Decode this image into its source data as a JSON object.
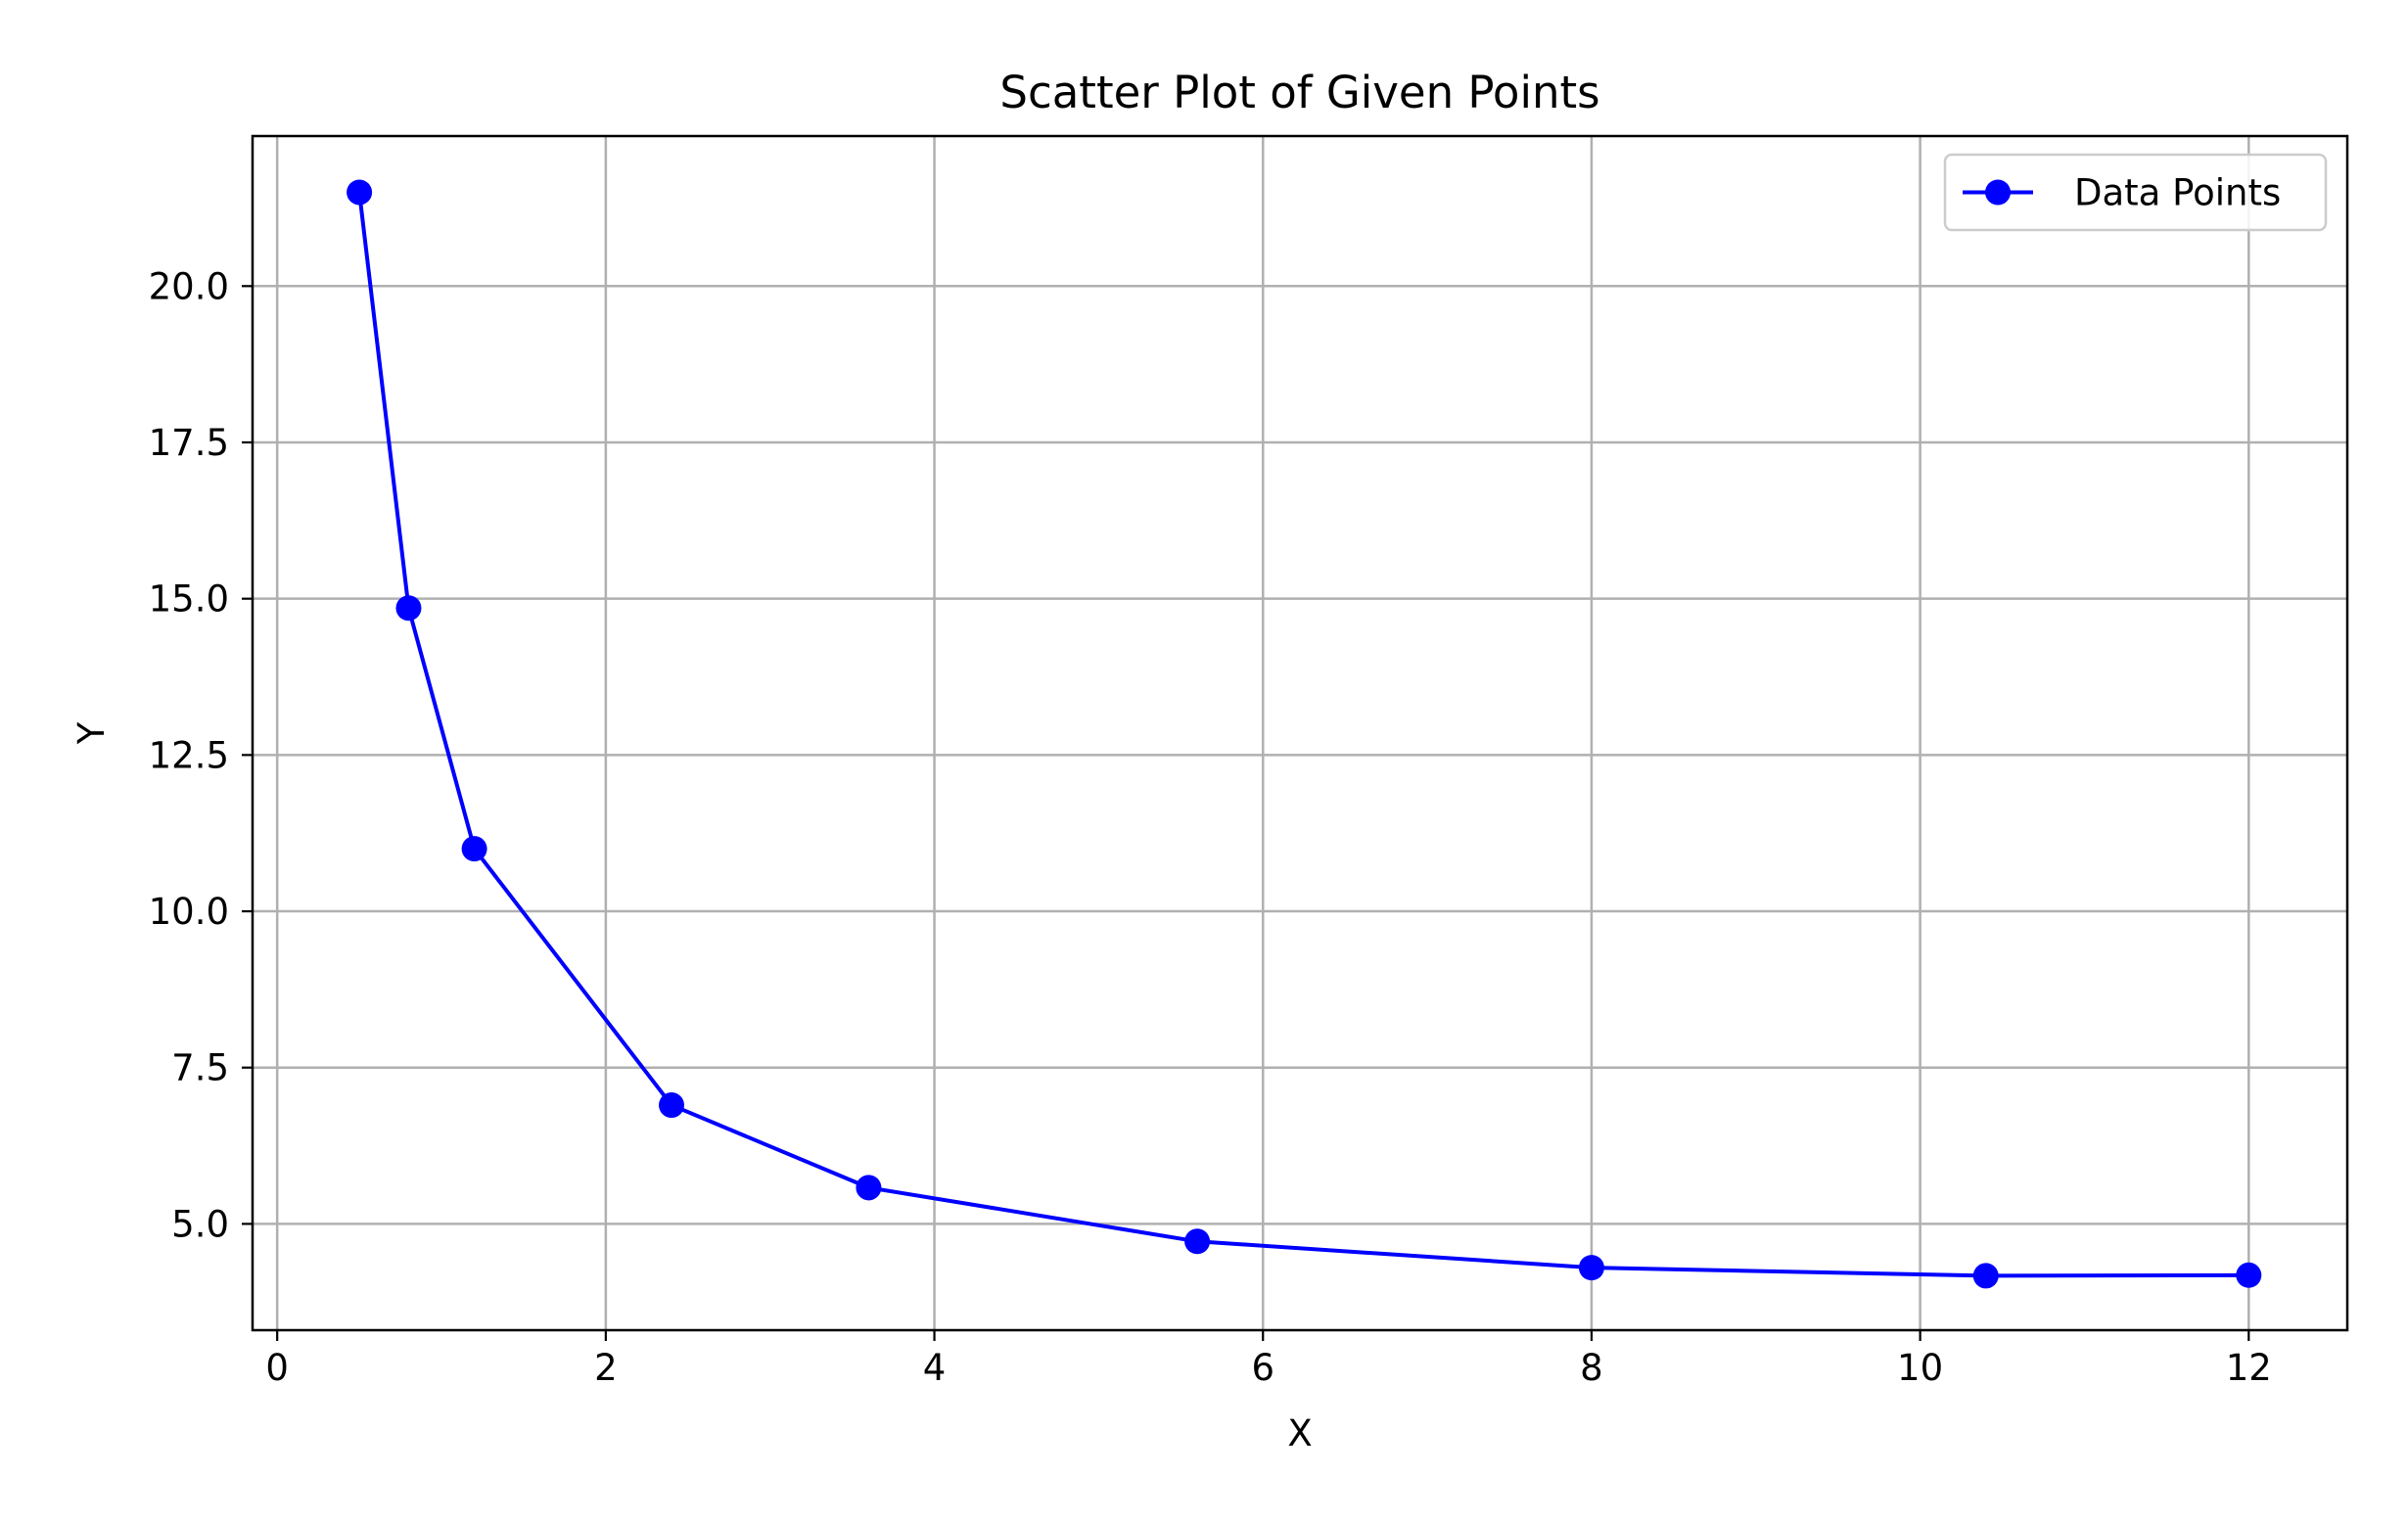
{
  "chart_data": {
    "type": "line",
    "title": "Scatter Plot of Given Points",
    "xlabel": "X",
    "ylabel": "Y",
    "xlim": [
      -0.15,
      12.6
    ],
    "ylim": [
      3.3,
      22.4
    ],
    "x_ticks": [
      0,
      2,
      4,
      6,
      8,
      10,
      12
    ],
    "y_ticks": [
      5.0,
      7.5,
      10.0,
      12.5,
      15.0,
      17.5,
      20.0
    ],
    "grid": true,
    "legend_position": "top-right",
    "series": [
      {
        "name": "Data Points",
        "color": "#0000ff",
        "marker": "circle",
        "x": [
          0.5,
          0.8,
          1.2,
          2.4,
          3.6,
          5.6,
          8.0,
          10.4,
          12.0
        ],
        "y": [
          21.5,
          14.85,
          11.0,
          6.9,
          5.58,
          4.72,
          4.3,
          4.17,
          4.18
        ]
      }
    ]
  }
}
